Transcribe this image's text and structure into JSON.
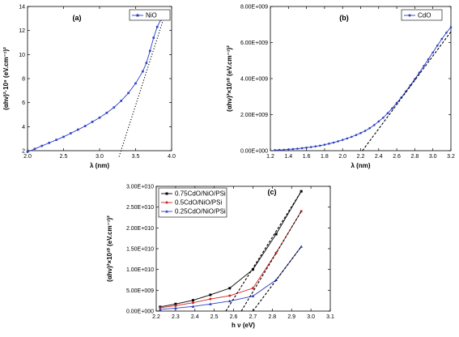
{
  "chart_data": [
    {
      "type": "line",
      "panel_label": "(a)",
      "xlabel": "λ (nm)",
      "ylabel": "(αhν)²·10⁹ (eV.cm⁻¹)²",
      "xlim": [
        2.0,
        4.0
      ],
      "ylim": [
        2,
        14
      ],
      "xticks": [
        "2.0",
        "2.5",
        "3.0",
        "3.5",
        "4.0"
      ],
      "yticks": [
        "2",
        "4",
        "6",
        "8",
        "10",
        "12",
        "14"
      ],
      "legend_position": "top-right",
      "series": [
        {
          "name": "NiO",
          "color": "#2a3fc7",
          "marker": "square",
          "x": [
            2.0,
            2.1,
            2.2,
            2.3,
            2.4,
            2.5,
            2.6,
            2.7,
            2.8,
            2.9,
            3.0,
            3.1,
            3.2,
            3.3,
            3.4,
            3.5,
            3.6,
            3.65,
            3.7,
            3.75,
            3.8,
            3.85,
            3.9
          ],
          "y": [
            1.9,
            2.15,
            2.4,
            2.65,
            2.9,
            3.15,
            3.45,
            3.75,
            4.05,
            4.4,
            4.75,
            5.15,
            5.6,
            6.15,
            6.8,
            7.6,
            8.6,
            9.3,
            10.3,
            11.4,
            12.3,
            12.9,
            13.2
          ]
        },
        {
          "name": "",
          "style": "dotted",
          "color": "#000000",
          "x": [
            3.27,
            3.9
          ],
          "y": [
            1.5,
            13.2
          ]
        }
      ]
    },
    {
      "type": "line",
      "panel_label": "(b)",
      "xlabel": "λ (nm)",
      "ylabel": "(αhν)²×10¹⁰ (eV.cm⁻¹)²",
      "xlim": [
        1.2,
        3.2
      ],
      "ylim": [
        0,
        8000000000
      ],
      "xticks": [
        "1.2",
        "1.4",
        "1.6",
        "1.8",
        "2.0",
        "2.2",
        "2.4",
        "2.6",
        "2.8",
        "3.0",
        "3.2"
      ],
      "yticks": [
        "0.00E+000",
        "2.00E+009",
        "4.00E+009",
        "6.00E+009",
        "8.00E+009"
      ],
      "legend_position": "top-right",
      "series": [
        {
          "name": "CdO",
          "color": "#2a3fc7",
          "marker": "circle",
          "x": [
            1.25,
            1.3,
            1.35,
            1.4,
            1.45,
            1.5,
            1.55,
            1.6,
            1.65,
            1.7,
            1.75,
            1.8,
            1.85,
            1.9,
            1.95,
            2.0,
            2.05,
            2.1,
            2.15,
            2.2,
            2.25,
            2.3,
            2.35,
            2.4,
            2.45,
            2.5,
            2.55,
            2.6,
            2.65,
            2.7,
            2.75,
            2.8,
            2.85,
            2.9,
            2.95,
            3.0,
            3.05,
            3.1,
            3.15,
            3.2
          ],
          "y": [
            30000000,
            40000000,
            50000000,
            70000000,
            90000000,
            110000000,
            140000000,
            170000000,
            200000000,
            240000000,
            280000000,
            330000000,
            390000000,
            450000000,
            520000000,
            600000000,
            680000000,
            770000000,
            870000000,
            980000000,
            1100000000,
            1250000000,
            1420000000,
            1620000000,
            1830000000,
            2080000000,
            2350000000,
            2650000000,
            2950000000,
            3280000000,
            3620000000,
            3970000000,
            4330000000,
            4700000000,
            5070000000,
            5450000000,
            5830000000,
            6200000000,
            6550000000,
            6850000000
          ]
        },
        {
          "name": "",
          "style": "dashed",
          "color": "#000000",
          "x": [
            2.22,
            3.2
          ],
          "y": [
            0,
            6600000000
          ]
        }
      ]
    },
    {
      "type": "line",
      "panel_label": "(c)",
      "xlabel": "h ν  (eV)",
      "ylabel": "(αhν)²×10¹⁰ (eV.cm⁻¹)²",
      "xlim": [
        2.2,
        3.1
      ],
      "ylim": [
        0,
        30000000000
      ],
      "xticks": [
        "2.2",
        "2.3",
        "2.4",
        "2.5",
        "2.6",
        "2.7",
        "2.8",
        "2.9",
        "3.0",
        "3.1"
      ],
      "yticks": [
        "0.00E+000",
        "5.00E+009",
        "1.00E+010",
        "1.50E+010",
        "2.00E+010",
        "2.50E+010",
        "3.00E+010"
      ],
      "legend_position": "top-left",
      "series": [
        {
          "name": "0.75CdO/NiO/PSi",
          "color": "#000000",
          "marker": "square",
          "x": [
            2.22,
            2.3,
            2.39,
            2.48,
            2.58,
            2.7,
            2.82,
            2.95
          ],
          "y": [
            1000000000,
            1700000000,
            2600000000,
            3900000000,
            5500000000,
            10000000000,
            18500000000,
            28800000000
          ]
        },
        {
          "name": "0.5CdO/NiO/PSi",
          "color": "#d12424",
          "marker": "circle",
          "x": [
            2.22,
            2.3,
            2.39,
            2.48,
            2.58,
            2.7,
            2.82,
            2.95
          ],
          "y": [
            800000000,
            1300000000,
            2000000000,
            2900000000,
            3700000000,
            5500000000,
            14000000000,
            24000000000
          ]
        },
        {
          "name": "0.25CdO/NiO/PSi",
          "color": "#2a3fc7",
          "marker": "triangle",
          "x": [
            2.22,
            2.3,
            2.39,
            2.48,
            2.58,
            2.7,
            2.82,
            2.95
          ],
          "y": [
            400000000,
            700000000,
            1100000000,
            1700000000,
            2400000000,
            3600000000,
            7500000000,
            15500000000
          ]
        },
        {
          "name": "",
          "style": "dashed",
          "color": "#000000",
          "x": [
            2.56,
            2.95
          ],
          "y": [
            0,
            28800000000
          ]
        },
        {
          "name": "",
          "style": "dashed",
          "color": "#000000",
          "x": [
            2.64,
            2.95
          ],
          "y": [
            0,
            24000000000
          ]
        },
        {
          "name": "",
          "style": "dashed",
          "color": "#000000",
          "x": [
            2.7,
            2.95
          ],
          "y": [
            0,
            15500000000
          ]
        }
      ]
    }
  ]
}
